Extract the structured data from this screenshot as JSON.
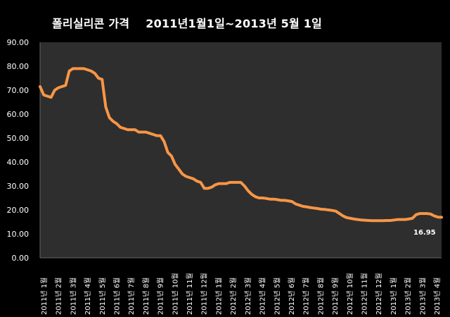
{
  "chart_data": {
    "type": "line",
    "title": "폴리실리콘 가격    2011년1월1일~2013년 5월 1일",
    "xlabel": "",
    "ylabel": "",
    "ylim": [
      0,
      90
    ],
    "y_ticks": [
      "0.00",
      "10.00",
      "20.00",
      "30.00",
      "40.00",
      "50.00",
      "60.00",
      "70.00",
      "80.00",
      "90.00"
    ],
    "x_tick_labels": [
      "2011년 1월",
      "2011년 2월",
      "2011년 3월",
      "2011년 4월",
      "2011년 5월",
      "2011년 6월",
      "2011년 7월",
      "2011년 8월",
      "2011년 9월",
      "2011년 10월",
      "2011년 11월",
      "2011년 12월",
      "2012년 1월",
      "2012년 2월",
      "2012년 3월",
      "2012년 4월",
      "2012년 5월",
      "2012년 6월",
      "2012년 7월",
      "2012년 8월",
      "2012년 9월",
      "2012년 10월",
      "2012년 11월",
      "2012년 12월",
      "2013년 1월",
      "2013년 2월",
      "2013년 3월",
      "2013년 4월"
    ],
    "grid": false,
    "legend": "none",
    "annotation": "16.95",
    "line_color": "#f79646",
    "series": [
      {
        "values": [
          71.5,
          68,
          67.5,
          67,
          70,
          71,
          71.5,
          72,
          78,
          79,
          79,
          79,
          79,
          78.5,
          78,
          77,
          75,
          74.5,
          63,
          58.5,
          57,
          56,
          54.5,
          54,
          53.5,
          53.5,
          53.5,
          52.5,
          52.5,
          52.5,
          52,
          51.5,
          51,
          51,
          48.5,
          44,
          42.5,
          39,
          37,
          35,
          34,
          33.5,
          33,
          32,
          31.5,
          29,
          29,
          29.5,
          30.5,
          31,
          31,
          31,
          31.5,
          31.5,
          31.5,
          31.5,
          30,
          28,
          26.5,
          25.5,
          25,
          25,
          24.8,
          24.5,
          24.5,
          24.3,
          24,
          24,
          23.8,
          23.5,
          22.5,
          22,
          21.5,
          21.3,
          21,
          20.8,
          20.6,
          20.3,
          20.2,
          20,
          19.8,
          19.5,
          18.5,
          17.5,
          16.8,
          16.5,
          16.2,
          16,
          15.8,
          15.7,
          15.6,
          15.5,
          15.5,
          15.5,
          15.5,
          15.6,
          15.6,
          15.8,
          16,
          16,
          16,
          16.2,
          16.5,
          18,
          18.5,
          18.5,
          18.5,
          18.3,
          17.5,
          17,
          16.95
        ]
      }
    ]
  }
}
